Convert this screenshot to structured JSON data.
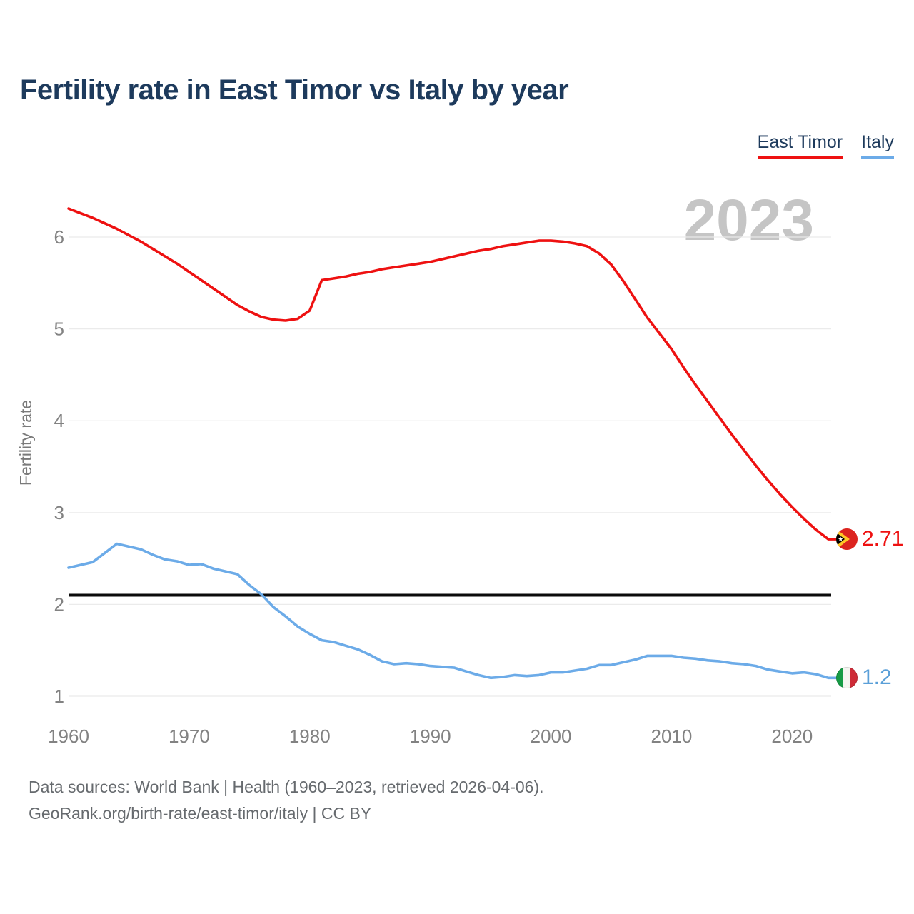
{
  "title": "Fertility rate in East Timor vs Italy by year",
  "year_watermark": "2023",
  "legend": [
    {
      "label": "East Timor",
      "color": "#ee1111"
    },
    {
      "label": "Italy",
      "color": "#6cabe8"
    }
  ],
  "footer": {
    "line1": "Data sources: World Bank | Health (1960–2023, retrieved 2026-04-06).",
    "line2": "GeoRank.org/birth-rate/east-timor/italy | CC BY"
  },
  "chart_data": {
    "type": "line",
    "title": "Fertility rate in East Timor vs Italy by year",
    "xlabel": "",
    "ylabel": "Fertility rate",
    "xlim": [
      1960,
      2023
    ],
    "ylim": [
      0.85,
      6.45
    ],
    "x_ticks": [
      1960,
      1970,
      1980,
      1990,
      2000,
      2010,
      2020
    ],
    "y_ticks": [
      1,
      2,
      3,
      4,
      5,
      6
    ],
    "grid": "horizontal",
    "legend_position": "top-right",
    "reference_line": {
      "value": 2.1,
      "color": "#0b0b0b",
      "meaning": "replacement-level fertility"
    },
    "x": [
      1960,
      1961,
      1962,
      1963,
      1964,
      1965,
      1966,
      1967,
      1968,
      1969,
      1970,
      1971,
      1972,
      1973,
      1974,
      1975,
      1976,
      1977,
      1978,
      1979,
      1980,
      1981,
      1982,
      1983,
      1984,
      1985,
      1986,
      1987,
      1988,
      1989,
      1990,
      1991,
      1992,
      1993,
      1994,
      1995,
      1996,
      1997,
      1998,
      1999,
      2000,
      2001,
      2002,
      2003,
      2004,
      2005,
      2006,
      2007,
      2008,
      2009,
      2010,
      2011,
      2012,
      2013,
      2014,
      2015,
      2016,
      2017,
      2018,
      2019,
      2020,
      2021,
      2022,
      2023
    ],
    "series": [
      {
        "name": "East Timor",
        "color": "#ee1111",
        "values": [
          6.31,
          6.26,
          6.21,
          6.15,
          6.09,
          6.02,
          5.95,
          5.87,
          5.79,
          5.71,
          5.62,
          5.53,
          5.44,
          5.35,
          5.26,
          5.19,
          5.13,
          5.1,
          5.09,
          5.11,
          5.2,
          5.53,
          5.55,
          5.57,
          5.6,
          5.62,
          5.65,
          5.67,
          5.69,
          5.71,
          5.73,
          5.76,
          5.79,
          5.82,
          5.85,
          5.87,
          5.9,
          5.92,
          5.94,
          5.96,
          5.96,
          5.95,
          5.93,
          5.9,
          5.82,
          5.7,
          5.52,
          5.32,
          5.12,
          4.95,
          4.78,
          4.58,
          4.39,
          4.21,
          4.03,
          3.85,
          3.68,
          3.51,
          3.35,
          3.2,
          3.06,
          2.93,
          2.81,
          2.71
        ]
      },
      {
        "name": "Italy",
        "color": "#6cabe8",
        "values": [
          2.4,
          2.43,
          2.46,
          2.56,
          2.66,
          2.63,
          2.6,
          2.54,
          2.49,
          2.47,
          2.43,
          2.44,
          2.39,
          2.36,
          2.33,
          2.21,
          2.11,
          1.97,
          1.87,
          1.76,
          1.68,
          1.61,
          1.59,
          1.55,
          1.51,
          1.45,
          1.38,
          1.35,
          1.36,
          1.35,
          1.33,
          1.32,
          1.31,
          1.27,
          1.23,
          1.2,
          1.21,
          1.23,
          1.22,
          1.23,
          1.26,
          1.26,
          1.28,
          1.3,
          1.34,
          1.34,
          1.37,
          1.4,
          1.44,
          1.44,
          1.44,
          1.42,
          1.41,
          1.39,
          1.38,
          1.36,
          1.35,
          1.33,
          1.29,
          1.27,
          1.25,
          1.26,
          1.24,
          1.2
        ]
      }
    ],
    "end_labels": [
      {
        "series": "East Timor",
        "value": "2.71",
        "color": "#ee1111",
        "flag": "east-timor-flag"
      },
      {
        "series": "Italy",
        "value": "1.2",
        "color": "#5a9fd8",
        "flag": "italy-flag"
      }
    ]
  }
}
